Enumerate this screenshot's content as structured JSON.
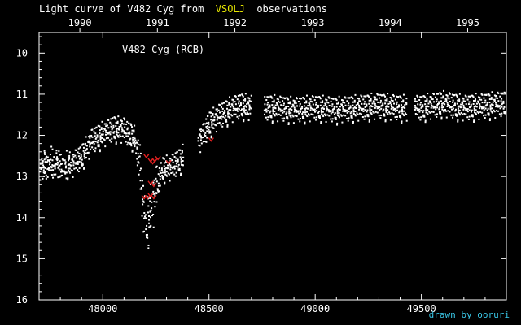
{
  "header": {
    "prefix": "Light curve of V482 Cyg from",
    "source": "VSOLJ",
    "suffix": "observations",
    "source_color": "#e6e600"
  },
  "credit": {
    "text": "drawn by ooruri",
    "color": "#39c6e6"
  },
  "chart_data": {
    "type": "scatter",
    "title": "Light curve of V482 Cyg from VSOLJ observations",
    "annotation": "V482 Cyg (RCB)",
    "x_axis": {
      "label": "",
      "range": [
        47700,
        49900
      ],
      "ticks": [
        48000,
        48500,
        49000,
        49500
      ],
      "tick_labels": [
        "48000",
        "48500",
        "49000",
        "49500"
      ]
    },
    "x2_axis": {
      "label": "",
      "ticks": [
        47892,
        48257,
        48622,
        48988,
        49353,
        49718
      ],
      "tick_labels": [
        "1990",
        "1991",
        "1992",
        "1993",
        "1994",
        "1995"
      ]
    },
    "y_axis": {
      "label": "",
      "range": [
        16,
        9.5
      ],
      "inverted": true,
      "ticks": [
        10,
        11,
        12,
        13,
        14,
        15,
        16
      ],
      "tick_labels": [
        "10",
        "11",
        "12",
        "13",
        "14",
        "15",
        "16"
      ]
    },
    "grid": false,
    "colors": {
      "background": "#000000",
      "points": "#ffffff",
      "fainter_than": "#e02020"
    },
    "light_curve": [
      [
        47700,
        12.7
      ],
      [
        47750,
        12.6
      ],
      [
        47800,
        12.65
      ],
      [
        47850,
        12.7
      ],
      [
        47900,
        12.5
      ],
      [
        47950,
        12.1
      ],
      [
        48000,
        11.95
      ],
      [
        48050,
        11.8
      ],
      [
        48100,
        11.85
      ],
      [
        48150,
        12.05
      ],
      [
        48170,
        12.6
      ],
      [
        48180,
        13.0
      ],
      [
        48190,
        13.7
      ],
      [
        48200,
        14.0
      ],
      [
        48215,
        13.95
      ],
      [
        48230,
        13.7
      ],
      [
        48250,
        13.3
      ],
      [
        48280,
        12.8
      ],
      [
        48320,
        12.75
      ],
      [
        48360,
        12.6
      ],
      [
        48400,
        12.4
      ],
      [
        48430,
        12.2
      ],
      [
        48470,
        12.0
      ],
      [
        48500,
        11.7
      ],
      [
        48550,
        11.5
      ],
      [
        48600,
        11.35
      ],
      [
        48650,
        11.25
      ],
      [
        48700,
        11.3
      ],
      [
        48800,
        11.3
      ],
      [
        48900,
        11.35
      ],
      [
        49000,
        11.3
      ],
      [
        49100,
        11.35
      ],
      [
        49200,
        11.3
      ],
      [
        49300,
        11.25
      ],
      [
        49400,
        11.3
      ],
      [
        49500,
        11.3
      ],
      [
        49600,
        11.2
      ],
      [
        49700,
        11.3
      ],
      [
        49800,
        11.25
      ],
      [
        49900,
        11.2
      ]
    ],
    "observation_gaps": [
      [
        48380,
        48450
      ],
      [
        48700,
        48760
      ],
      [
        49430,
        49470
      ]
    ],
    "fainter_than_points": [
      [
        48205,
        12.5
      ],
      [
        48225,
        12.6
      ],
      [
        48235,
        12.65
      ],
      [
        48245,
        12.6
      ],
      [
        48260,
        12.55
      ],
      [
        48310,
        12.65
      ],
      [
        48225,
        13.15
      ],
      [
        48240,
        13.2
      ],
      [
        48195,
        13.5
      ],
      [
        48210,
        13.5
      ],
      [
        48225,
        13.45
      ],
      [
        48240,
        13.5
      ],
      [
        48510,
        12.1
      ]
    ]
  }
}
